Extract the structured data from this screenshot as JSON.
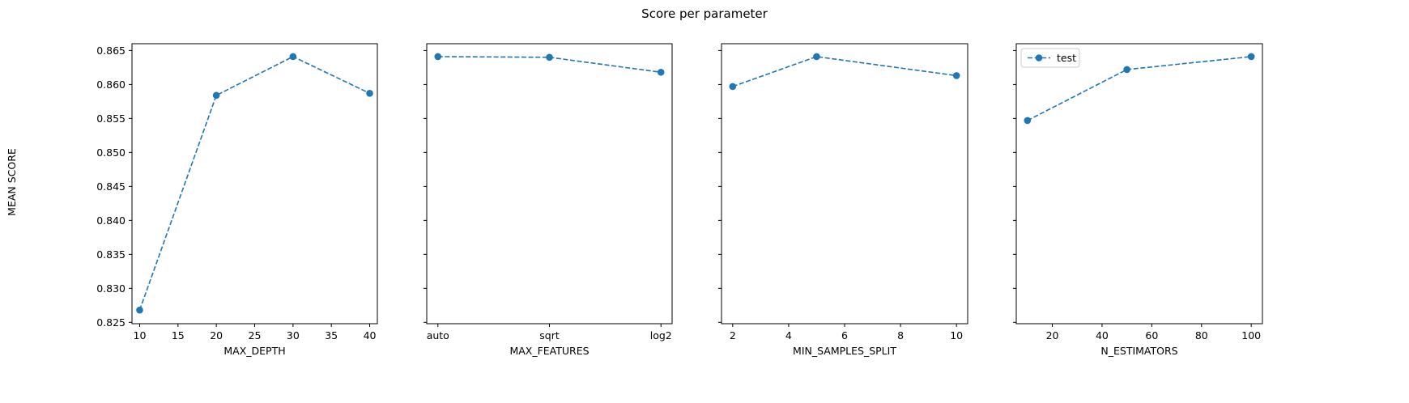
{
  "figure": {
    "suptitle": "Score per parameter",
    "ylabel": "MEAN SCORE"
  },
  "colors": {
    "series": "#1f77b4",
    "axes": "#000000",
    "background": "#ffffff"
  },
  "chart_data": [
    {
      "type": "line",
      "xlabel": "MAX_DEPTH",
      "x_type": "numeric",
      "x": [
        10,
        20,
        30,
        40
      ],
      "xlim": [
        9,
        41
      ],
      "xticks": [
        10,
        15,
        20,
        25,
        30,
        35,
        40
      ],
      "series": [
        {
          "name": "test",
          "values": [
            0.8268,
            0.8584,
            0.8641,
            0.8587
          ],
          "style": "dashed-marker"
        }
      ],
      "ylim": [
        0.8248,
        0.866
      ],
      "yticks": [
        "0.825",
        "0.830",
        "0.835",
        "0.840",
        "0.845",
        "0.850",
        "0.855",
        "0.860",
        "0.865"
      ],
      "show_ytick_labels": true,
      "legend": false
    },
    {
      "type": "line",
      "xlabel": "MAX_FEATURES",
      "x_type": "categorical",
      "categories": [
        "auto",
        "sqrt",
        "log2"
      ],
      "series": [
        {
          "name": "test",
          "values": [
            0.8641,
            0.864,
            0.8618
          ],
          "style": "dashed-marker"
        }
      ],
      "ylim": [
        0.8248,
        0.866
      ],
      "yticks": [
        "0.825",
        "0.830",
        "0.835",
        "0.840",
        "0.845",
        "0.850",
        "0.855",
        "0.860",
        "0.865"
      ],
      "show_ytick_labels": false,
      "legend": false
    },
    {
      "type": "line",
      "xlabel": "MIN_SAMPLES_SPLIT",
      "x_type": "numeric",
      "x": [
        2,
        5,
        10
      ],
      "xlim": [
        1.6,
        10.4
      ],
      "xticks": [
        2,
        4,
        6,
        8,
        10
      ],
      "series": [
        {
          "name": "test",
          "values": [
            0.8597,
            0.8641,
            0.8613
          ],
          "style": "dashed-marker"
        }
      ],
      "ylim": [
        0.8248,
        0.866
      ],
      "yticks": [
        "0.825",
        "0.830",
        "0.835",
        "0.840",
        "0.845",
        "0.850",
        "0.855",
        "0.860",
        "0.865"
      ],
      "show_ytick_labels": false,
      "legend": false
    },
    {
      "type": "line",
      "xlabel": "N_ESTIMATORS",
      "x_type": "numeric",
      "x": [
        10,
        50,
        100
      ],
      "xlim": [
        5.5,
        104.5
      ],
      "xticks": [
        20,
        40,
        60,
        80,
        100
      ],
      "series": [
        {
          "name": "test",
          "values": [
            0.8547,
            0.8622,
            0.8641
          ],
          "style": "dashed-marker"
        }
      ],
      "ylim": [
        0.8248,
        0.866
      ],
      "yticks": [
        "0.825",
        "0.830",
        "0.835",
        "0.840",
        "0.845",
        "0.850",
        "0.855",
        "0.860",
        "0.865"
      ],
      "show_ytick_labels": false,
      "legend": true,
      "legend_position": "top-left"
    }
  ]
}
